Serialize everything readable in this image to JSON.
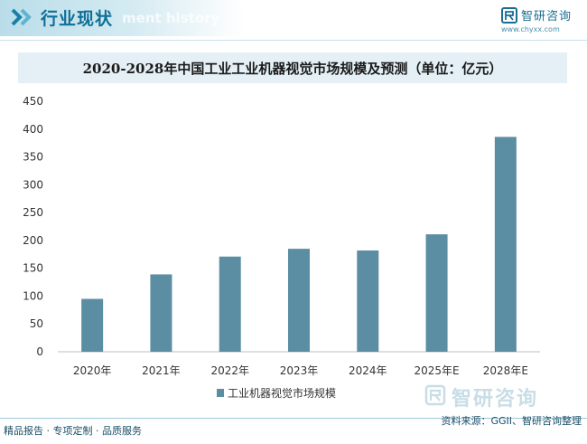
{
  "header": {
    "title": "行业现状",
    "ghost_text": "ment history"
  },
  "brand": {
    "name": "智研咨询",
    "url": "www.chyxx.com"
  },
  "watermark_text": "智研咨询",
  "chart_data": {
    "type": "bar",
    "title": "2020-2028年中国工业工业机器视觉市场规模及预测（单位：亿元）",
    "categories": [
      "2020年",
      "2021年",
      "2022年",
      "2023年",
      "2024年",
      "2025年E",
      "2028年E"
    ],
    "series": [
      {
        "name": "工业机器视觉市场规模",
        "values": [
          95,
          139,
          171,
          185,
          182,
          211,
          386
        ],
        "color": "#5b8ea3"
      }
    ],
    "yticks": [
      0,
      50,
      100,
      150,
      200,
      250,
      300,
      350,
      400,
      450
    ],
    "ylim": [
      0,
      450
    ],
    "grid": false,
    "legend_position": "bottom"
  },
  "footer": {
    "left": "精品报告 · 专项定制 · 品质服务",
    "source": "资料来源：GGII、智研咨询整理"
  }
}
